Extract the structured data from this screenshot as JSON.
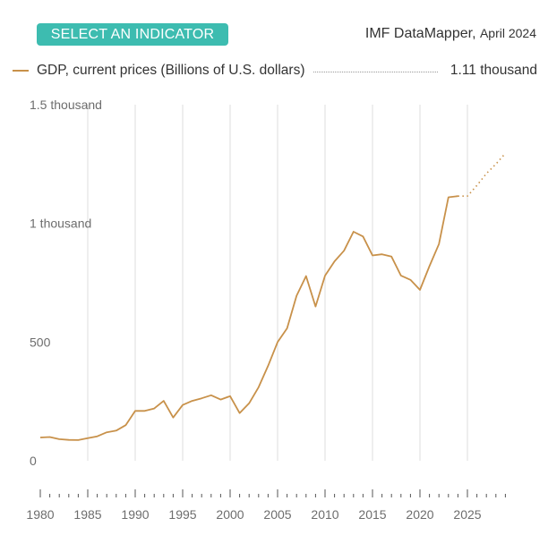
{
  "header": {
    "indicator_button": "SELECT AN INDICATOR",
    "source": "IMF DataMapper",
    "edition": "April 2024"
  },
  "legend": {
    "label": "GDP, current prices (Billions of U.S. dollars)",
    "value": "1.11 thousand"
  },
  "colors": {
    "accent": "#3dbcb0",
    "series": "#c8914a",
    "grid": "#dddddd",
    "axis_text": "#6d6d6d"
  },
  "chart_data": {
    "type": "line",
    "title": "",
    "xlabel": "",
    "ylabel": "",
    "xlim": [
      1980,
      2029
    ],
    "ylim": [
      0,
      1500
    ],
    "grid": true,
    "y_ticks": [
      {
        "value": 0,
        "label": "0"
      },
      {
        "value": 500,
        "label": "500"
      },
      {
        "value": 1000,
        "label": "1 thousand"
      },
      {
        "value": 1500,
        "label": "1.5 thousand"
      }
    ],
    "x_ticks": [
      1980,
      1985,
      1990,
      1995,
      2000,
      2005,
      2010,
      2015,
      2020,
      2025
    ],
    "series": [
      {
        "name": "GDP, current prices (Billions of U.S. dollars)",
        "style": "solid",
        "x": [
          1980,
          1981,
          1982,
          1983,
          1984,
          1985,
          1986,
          1987,
          1988,
          1989,
          1990,
          1991,
          1992,
          1993,
          1994,
          1995,
          1996,
          1997,
          1998,
          1999,
          2000,
          2001,
          2002,
          2003,
          2004,
          2005,
          2006,
          2007,
          2008,
          2009,
          2010,
          2011,
          2012,
          2013,
          2014,
          2015,
          2016,
          2017,
          2018,
          2019,
          2020,
          2021,
          2022,
          2023,
          2024
        ],
        "y": [
          98,
          100,
          91,
          88,
          87,
          95,
          103,
          120,
          127,
          150,
          210,
          210,
          220,
          252,
          182,
          235,
          252,
          263,
          276,
          258,
          272,
          201,
          242,
          310,
          400,
          500,
          558,
          695,
          778,
          650,
          780,
          840,
          885,
          965,
          945,
          865,
          870,
          860,
          780,
          762,
          720,
          820,
          913,
          1110,
          1115
        ]
      },
      {
        "name": "",
        "style": "dotted",
        "x": [
          2024,
          2025,
          2026,
          2027,
          2028,
          2029
        ],
        "y": [
          1115,
          1115,
          1160,
          1210,
          1250,
          1295
        ]
      }
    ]
  }
}
